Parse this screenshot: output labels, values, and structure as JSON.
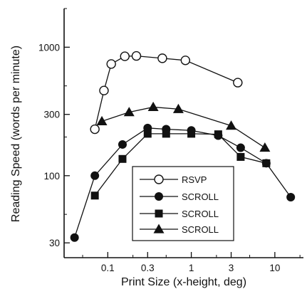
{
  "chart_data": {
    "type": "line",
    "title": "",
    "xlabel": "Print Size (x-height, deg)",
    "ylabel": "Reading Speed (words per minute)",
    "x_scale": "log",
    "y_scale": "log",
    "xlim": [
      0.03,
      22
    ],
    "ylim": [
      23,
      2000
    ],
    "x_ticks": [
      0.1,
      0.3,
      1,
      3,
      10
    ],
    "x_tick_labels": [
      "0.1",
      "0.3",
      "1",
      "3",
      "10"
    ],
    "y_ticks": [
      30,
      100,
      300,
      1000
    ],
    "y_tick_labels": [
      "30",
      "100",
      "300",
      "1000"
    ],
    "grid": false,
    "legend": {
      "placement": "bottom-center",
      "frame": true
    },
    "series": [
      {
        "name": "RSVP",
        "marker": "open-circle",
        "color": "#111111",
        "x": [
          0.07,
          0.09,
          0.11,
          0.16,
          0.22,
          0.45,
          0.85,
          3.6
        ],
        "y": [
          230,
          460,
          740,
          850,
          855,
          820,
          790,
          530
        ]
      },
      {
        "name": "SCROLL",
        "marker": "filled-circle",
        "color": "#111111",
        "x": [
          0.04,
          0.07,
          0.15,
          0.3,
          0.5,
          1.0,
          2.1,
          3.9,
          7.9,
          15.5
        ],
        "y": [
          33,
          100,
          175,
          235,
          230,
          225,
          205,
          165,
          125,
          68
        ]
      },
      {
        "name": "SCROLL",
        "marker": "filled-square",
        "color": "#111111",
        "x": [
          0.07,
          0.15,
          0.3,
          0.5,
          1.0,
          2.1,
          3.9,
          7.9
        ],
        "y": [
          70,
          135,
          212,
          212,
          212,
          210,
          140,
          125
        ]
      },
      {
        "name": "SCROLL",
        "marker": "filled-triangle",
        "color": "#111111",
        "x": [
          0.085,
          0.18,
          0.35,
          0.7,
          3.0,
          7.6
        ],
        "y": [
          265,
          312,
          342,
          330,
          245,
          165
        ]
      }
    ]
  }
}
